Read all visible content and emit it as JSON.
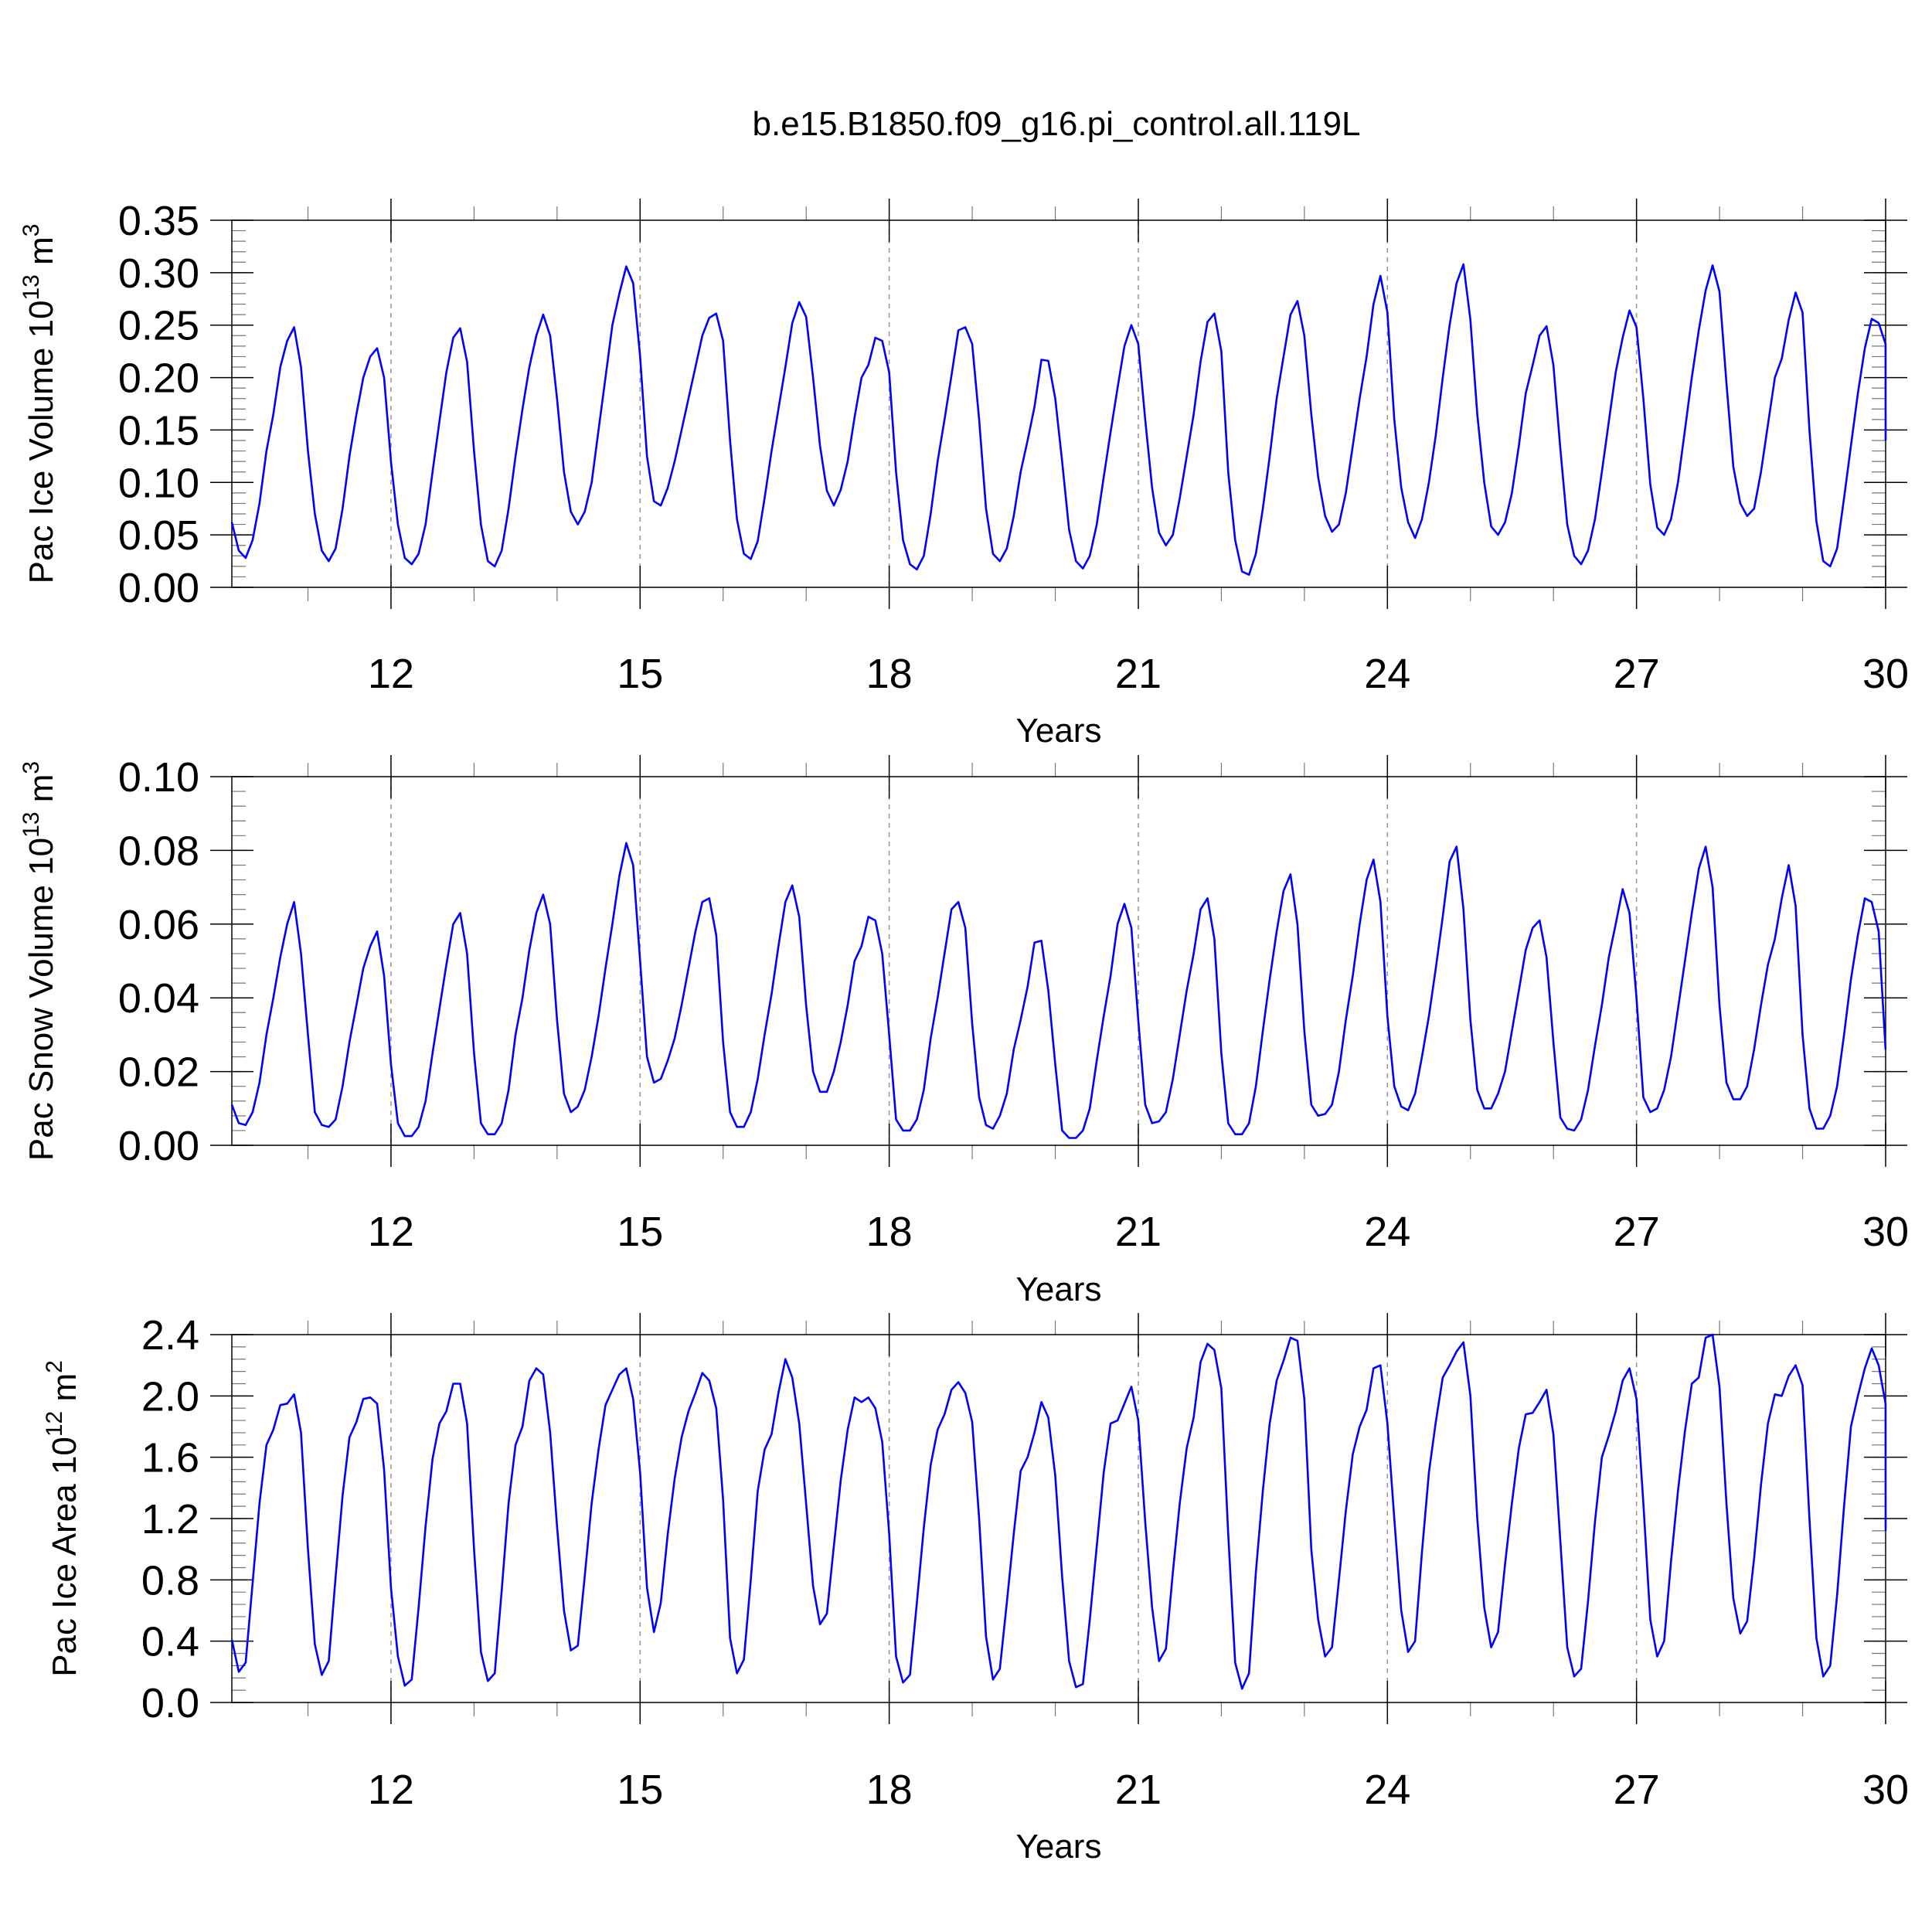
{
  "title": "b.e15.B1850.f09_g16.pi_control.all.119L",
  "colors": {
    "line": "#0000ff",
    "grid": "#999999",
    "axis": "#000000"
  },
  "chart_data": [
    {
      "type": "line",
      "xlabel": "Years",
      "ylabel": "Pac Ice Volume 10",
      "ylabel_exp": "13",
      "ylabel_unit": " m",
      "ylabel_unit_exp": "3",
      "xlim": [
        10.0833,
        30.0
      ],
      "ylim": [
        0,
        0.35
      ],
      "x_ticks": [
        12,
        15,
        18,
        21,
        24,
        27,
        30
      ],
      "y_ticks": [
        0.0,
        0.05,
        0.1,
        0.15,
        0.2,
        0.25,
        0.3,
        0.35
      ],
      "y_tick_labels": [
        "0.00",
        "0.05",
        "0.10",
        "0.15",
        "0.20",
        "0.25",
        "0.30",
        "0.35"
      ],
      "y_minor_step": 0.01,
      "grid_x": [
        12,
        15,
        18,
        21,
        24,
        27
      ],
      "series": [
        {
          "x_start": 10.0833,
          "x_step": 0.08333,
          "values": [
            0.062,
            0.035,
            0.028,
            0.045,
            0.08,
            0.13,
            0.165,
            0.21,
            0.235,
            0.248,
            0.21,
            0.13,
            0.07,
            0.035,
            0.025,
            0.037,
            0.075,
            0.125,
            0.165,
            0.2,
            0.22,
            0.228,
            0.2,
            0.12,
            0.06,
            0.028,
            0.022,
            0.032,
            0.06,
            0.11,
            0.158,
            0.205,
            0.238,
            0.247,
            0.215,
            0.13,
            0.06,
            0.025,
            0.02,
            0.035,
            0.075,
            0.125,
            0.17,
            0.21,
            0.24,
            0.26,
            0.24,
            0.18,
            0.11,
            0.072,
            0.06,
            0.072,
            0.1,
            0.15,
            0.2,
            0.25,
            0.28,
            0.306,
            0.29,
            0.22,
            0.125,
            0.082,
            0.078,
            0.095,
            0.12,
            0.15,
            0.18,
            0.21,
            0.24,
            0.257,
            0.261,
            0.235,
            0.14,
            0.065,
            0.032,
            0.027,
            0.044,
            0.085,
            0.13,
            0.17,
            0.21,
            0.252,
            0.272,
            0.258,
            0.2,
            0.135,
            0.092,
            0.078,
            0.093,
            0.12,
            0.162,
            0.2,
            0.212,
            0.238,
            0.235,
            0.205,
            0.11,
            0.045,
            0.022,
            0.017,
            0.03,
            0.07,
            0.12,
            0.16,
            0.202,
            0.245,
            0.248,
            0.232,
            0.16,
            0.075,
            0.032,
            0.025,
            0.037,
            0.068,
            0.11,
            0.14,
            0.172,
            0.217,
            0.216,
            0.18,
            0.12,
            0.055,
            0.025,
            0.018,
            0.03,
            0.06,
            0.105,
            0.148,
            0.19,
            0.23,
            0.25,
            0.232,
            0.16,
            0.095,
            0.052,
            0.04,
            0.05,
            0.085,
            0.125,
            0.165,
            0.215,
            0.253,
            0.261,
            0.225,
            0.11,
            0.045,
            0.015,
            0.012,
            0.032,
            0.075,
            0.125,
            0.18,
            0.22,
            0.26,
            0.273,
            0.24,
            0.165,
            0.105,
            0.068,
            0.053,
            0.06,
            0.09,
            0.135,
            0.18,
            0.22,
            0.27,
            0.297,
            0.262,
            0.16,
            0.095,
            0.062,
            0.047,
            0.065,
            0.1,
            0.145,
            0.2,
            0.25,
            0.29,
            0.308,
            0.255,
            0.165,
            0.1,
            0.058,
            0.05,
            0.062,
            0.09,
            0.135,
            0.185,
            0.212,
            0.24,
            0.249,
            0.212,
            0.132,
            0.06,
            0.03,
            0.022,
            0.035,
            0.065,
            0.11,
            0.158,
            0.205,
            0.238,
            0.264,
            0.248,
            0.18,
            0.098,
            0.057,
            0.05,
            0.065,
            0.1,
            0.15,
            0.2,
            0.245,
            0.283,
            0.307,
            0.282,
            0.195,
            0.115,
            0.08,
            0.068,
            0.075,
            0.11,
            0.155,
            0.2,
            0.218,
            0.255,
            0.281,
            0.262,
            0.15,
            0.063,
            0.025,
            0.02,
            0.037,
            0.085,
            0.135,
            0.185,
            0.228,
            0.256,
            0.252,
            0.232,
            0.14
          ]
        }
      ]
    },
    {
      "type": "line",
      "xlabel": "Years",
      "ylabel": "Pac Snow Volume 10",
      "ylabel_exp": "13",
      "ylabel_unit": " m",
      "ylabel_unit_exp": "3",
      "xlim": [
        10.0833,
        30.0
      ],
      "ylim": [
        0,
        0.1
      ],
      "x_ticks": [
        12,
        15,
        18,
        21,
        24,
        27,
        30
      ],
      "y_ticks": [
        0.0,
        0.02,
        0.04,
        0.06,
        0.08,
        0.1
      ],
      "y_tick_labels": [
        "0.00",
        "0.02",
        "0.04",
        "0.06",
        "0.08",
        "0.10"
      ],
      "y_minor_step": 0.004,
      "grid_x": [
        12,
        15,
        18,
        21,
        24,
        27
      ],
      "series": [
        {
          "x_start": 10.0833,
          "x_step": 0.08333,
          "values": [
            0.011,
            0.006,
            0.0055,
            0.009,
            0.017,
            0.03,
            0.04,
            0.051,
            0.06,
            0.066,
            0.052,
            0.03,
            0.009,
            0.0055,
            0.005,
            0.007,
            0.016,
            0.028,
            0.038,
            0.048,
            0.054,
            0.058,
            0.046,
            0.022,
            0.006,
            0.0025,
            0.0025,
            0.005,
            0.012,
            0.025,
            0.037,
            0.049,
            0.06,
            0.063,
            0.052,
            0.025,
            0.006,
            0.003,
            0.003,
            0.006,
            0.015,
            0.03,
            0.04,
            0.053,
            0.063,
            0.068,
            0.06,
            0.034,
            0.014,
            0.009,
            0.0105,
            0.015,
            0.024,
            0.035,
            0.048,
            0.06,
            0.073,
            0.082,
            0.076,
            0.05,
            0.024,
            0.017,
            0.018,
            0.023,
            0.029,
            0.038,
            0.048,
            0.058,
            0.066,
            0.067,
            0.057,
            0.028,
            0.009,
            0.005,
            0.005,
            0.009,
            0.018,
            0.03,
            0.041,
            0.054,
            0.066,
            0.0705,
            0.062,
            0.038,
            0.02,
            0.0145,
            0.0145,
            0.02,
            0.028,
            0.038,
            0.05,
            0.054,
            0.062,
            0.061,
            0.052,
            0.03,
            0.007,
            0.004,
            0.004,
            0.007,
            0.015,
            0.029,
            0.04,
            0.052,
            0.064,
            0.066,
            0.059,
            0.033,
            0.013,
            0.0055,
            0.0045,
            0.008,
            0.014,
            0.026,
            0.034,
            0.043,
            0.055,
            0.0555,
            0.042,
            0.022,
            0.004,
            0.002,
            0.002,
            0.004,
            0.01,
            0.023,
            0.035,
            0.046,
            0.06,
            0.0655,
            0.059,
            0.034,
            0.011,
            0.006,
            0.0065,
            0.009,
            0.018,
            0.03,
            0.042,
            0.052,
            0.064,
            0.067,
            0.056,
            0.025,
            0.006,
            0.003,
            0.003,
            0.006,
            0.016,
            0.031,
            0.045,
            0.058,
            0.069,
            0.0735,
            0.06,
            0.031,
            0.011,
            0.008,
            0.0085,
            0.011,
            0.02,
            0.034,
            0.046,
            0.06,
            0.072,
            0.0775,
            0.066,
            0.035,
            0.016,
            0.0105,
            0.0095,
            0.014,
            0.024,
            0.035,
            0.048,
            0.062,
            0.077,
            0.081,
            0.064,
            0.034,
            0.015,
            0.01,
            0.01,
            0.014,
            0.02,
            0.031,
            0.042,
            0.053,
            0.059,
            0.061,
            0.051,
            0.028,
            0.0075,
            0.0045,
            0.004,
            0.007,
            0.015,
            0.027,
            0.038,
            0.051,
            0.06,
            0.0695,
            0.063,
            0.04,
            0.013,
            0.009,
            0.01,
            0.015,
            0.024,
            0.037,
            0.05,
            0.063,
            0.075,
            0.081,
            0.07,
            0.038,
            0.017,
            0.0125,
            0.0125,
            0.016,
            0.026,
            0.038,
            0.049,
            0.056,
            0.067,
            0.076,
            0.065,
            0.03,
            0.01,
            0.0045,
            0.0045,
            0.008,
            0.016,
            0.03,
            0.045,
            0.057,
            0.067,
            0.066,
            0.058,
            0.026
          ]
        }
      ]
    },
    {
      "type": "line",
      "xlabel": "Years",
      "ylabel": "Pac Ice Area 10",
      "ylabel_exp": "12",
      "ylabel_unit": " m",
      "ylabel_unit_exp": "2",
      "xlim": [
        10.0833,
        30.0
      ],
      "ylim": [
        0,
        2.4
      ],
      "x_ticks": [
        12,
        15,
        18,
        21,
        24,
        27,
        30
      ],
      "y_ticks": [
        0.0,
        0.4,
        0.8,
        1.2,
        1.6,
        2.0,
        2.4
      ],
      "y_tick_labels": [
        "0.0",
        "0.4",
        "0.8",
        "1.2",
        "1.6",
        "2.0",
        "2.4"
      ],
      "y_minor_step": 0.08,
      "grid_x": [
        12,
        15,
        18,
        21,
        24,
        27
      ],
      "series": [
        {
          "x_start": 10.0833,
          "x_step": 0.08333,
          "values": [
            0.41,
            0.2,
            0.26,
            0.78,
            1.3,
            1.68,
            1.78,
            1.94,
            1.95,
            2.01,
            1.76,
            1.0,
            0.38,
            0.18,
            0.27,
            0.82,
            1.35,
            1.73,
            1.83,
            1.98,
            1.99,
            1.95,
            1.52,
            0.75,
            0.3,
            0.11,
            0.15,
            0.62,
            1.15,
            1.59,
            1.82,
            1.9,
            2.08,
            2.08,
            1.82,
            1.0,
            0.33,
            0.14,
            0.19,
            0.73,
            1.3,
            1.68,
            1.8,
            2.1,
            2.18,
            2.14,
            1.76,
            1.15,
            0.6,
            0.34,
            0.37,
            0.82,
            1.3,
            1.65,
            1.94,
            2.04,
            2.14,
            2.18,
            1.98,
            1.5,
            0.75,
            0.46,
            0.65,
            1.1,
            1.46,
            1.73,
            1.9,
            2.02,
            2.15,
            2.1,
            1.92,
            1.32,
            0.42,
            0.19,
            0.28,
            0.8,
            1.38,
            1.65,
            1.75,
            2.02,
            2.24,
            2.12,
            1.82,
            1.3,
            0.76,
            0.51,
            0.58,
            1.02,
            1.45,
            1.78,
            1.99,
            1.96,
            1.99,
            1.92,
            1.7,
            1.1,
            0.3,
            0.13,
            0.18,
            0.65,
            1.14,
            1.55,
            1.78,
            1.88,
            2.04,
            2.09,
            2.02,
            1.83,
            1.2,
            0.43,
            0.15,
            0.22,
            0.65,
            1.1,
            1.51,
            1.6,
            1.76,
            1.96,
            1.86,
            1.48,
            0.82,
            0.27,
            0.1,
            0.12,
            0.54,
            1.02,
            1.5,
            1.82,
            1.84,
            1.95,
            2.06,
            1.84,
            1.18,
            0.62,
            0.27,
            0.35,
            0.85,
            1.3,
            1.66,
            1.86,
            2.22,
            2.34,
            2.3,
            2.05,
            1.1,
            0.26,
            0.09,
            0.19,
            0.85,
            1.38,
            1.82,
            2.1,
            2.23,
            2.38,
            2.36,
            1.98,
            1.0,
            0.54,
            0.3,
            0.36,
            0.8,
            1.25,
            1.62,
            1.8,
            1.91,
            2.18,
            2.2,
            1.82,
            1.2,
            0.6,
            0.33,
            0.4,
            0.98,
            1.5,
            1.83,
            2.12,
            2.2,
            2.29,
            2.35,
            2.0,
            1.2,
            0.62,
            0.36,
            0.46,
            0.9,
            1.3,
            1.66,
            1.88,
            1.89,
            1.96,
            2.04,
            1.75,
            1.05,
            0.36,
            0.17,
            0.22,
            0.66,
            1.18,
            1.6,
            1.74,
            1.9,
            2.1,
            2.18,
            1.98,
            1.3,
            0.54,
            0.3,
            0.4,
            0.92,
            1.38,
            1.77,
            2.08,
            2.12,
            2.38,
            2.4,
            2.06,
            1.3,
            0.68,
            0.45,
            0.53,
            0.94,
            1.42,
            1.82,
            2.01,
            2.0,
            2.13,
            2.2,
            2.07,
            1.2,
            0.42,
            0.17,
            0.24,
            0.7,
            1.28,
            1.8,
            2.0,
            2.18,
            2.31,
            2.2,
            1.95,
            1.12
          ]
        }
      ]
    }
  ]
}
